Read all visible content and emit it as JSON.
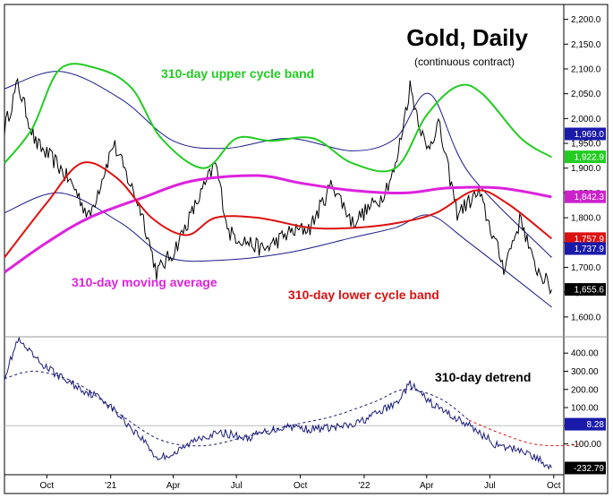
{
  "chart_data": {
    "type": "line",
    "title": "Gold, Daily",
    "subtitle": "(continuous contract)",
    "x_ticks": [
      "Oct",
      "'21",
      "Apr",
      "Jul",
      "Oct",
      "'22",
      "Apr",
      "Jul",
      "Oct"
    ],
    "x_range": [
      "2020-08-01",
      "2022-09-30"
    ],
    "upper_panel": {
      "ylim": [
        1560,
        2230
      ],
      "y_ticks": [
        "2,200.0",
        "2,150.0",
        "2,100.0",
        "2,050.0",
        "2,000.0",
        "1,950.0",
        "1,900.0",
        "1,850.0",
        "1,800.0",
        "1,750.0",
        "1,700.0",
        "1,650.0",
        "1,600.0"
      ],
      "annotations": {
        "upper_band": "310-day upper cycle band",
        "moving_average": "310-day moving average",
        "lower_band": "310-day lower cycle band"
      },
      "series": [
        {
          "key": "gold_price",
          "color": "#000000",
          "x": [
            "2020-08-01",
            "2020-08-20",
            "2020-09-15",
            "2020-10-15",
            "2020-11-10",
            "2020-12-01",
            "2021-01-05",
            "2021-02-15",
            "2021-03-08",
            "2021-04-01",
            "2021-05-15",
            "2021-06-01",
            "2021-06-20",
            "2021-08-09",
            "2021-09-15",
            "2021-10-15",
            "2021-11-16",
            "2021-12-15",
            "2022-01-25",
            "2022-02-15",
            "2022-03-08",
            "2022-04-01",
            "2022-04-18",
            "2022-05-15",
            "2022-06-15",
            "2022-07-21",
            "2022-08-15",
            "2022-09-01",
            "2022-09-28"
          ],
          "values": [
            1980,
            2070,
            1950,
            1910,
            1860,
            1800,
            1950,
            1810,
            1690,
            1730,
            1860,
            1910,
            1770,
            1735,
            1770,
            1780,
            1870,
            1790,
            1840,
            1900,
            2065,
            1935,
            1990,
            1810,
            1850,
            1700,
            1800,
            1710,
            1655
          ]
        },
        {
          "key": "upper_band",
          "color": "#22cc22",
          "x": [
            "2020-08-01",
            "2020-09-10",
            "2020-10-20",
            "2020-12-15",
            "2021-02-01",
            "2021-03-15",
            "2021-05-15",
            "2021-07-01",
            "2021-08-20",
            "2021-10-20",
            "2021-12-15",
            "2022-02-15",
            "2022-03-31",
            "2022-05-15",
            "2022-06-20",
            "2022-08-15",
            "2022-09-28"
          ],
          "values": [
            1910,
            1980,
            2100,
            2100,
            2060,
            1960,
            1900,
            1960,
            1955,
            1960,
            1910,
            1900,
            2005,
            2065,
            2050,
            1960,
            1922
          ]
        },
        {
          "key": "moving_average",
          "color": "#dd22dd",
          "x": [
            "2020-08-01",
            "2020-10-01",
            "2020-12-01",
            "2021-02-15",
            "2021-05-01",
            "2021-08-01",
            "2021-10-01",
            "2021-12-15",
            "2022-03-01",
            "2022-05-01",
            "2022-07-15",
            "2022-09-28"
          ],
          "values": [
            1690,
            1750,
            1800,
            1840,
            1875,
            1885,
            1870,
            1855,
            1850,
            1860,
            1860,
            1842
          ]
        },
        {
          "key": "lower_band",
          "color": "#dd1111",
          "x": [
            "2020-08-01",
            "2020-10-01",
            "2020-11-20",
            "2021-01-10",
            "2021-03-01",
            "2021-04-20",
            "2021-06-01",
            "2021-08-01",
            "2021-10-15",
            "2021-12-20",
            "2022-02-20",
            "2022-04-15",
            "2022-06-10",
            "2022-07-25",
            "2022-09-28"
          ],
          "values": [
            1720,
            1830,
            1910,
            1880,
            1800,
            1765,
            1800,
            1800,
            1780,
            1780,
            1790,
            1810,
            1855,
            1830,
            1758
          ]
        }
      ],
      "cycle_bands": [
        {
          "key": "outer_band_top",
          "x": [
            "2020-08-01",
            "2020-10-20",
            "2021-01-15",
            "2021-04-01",
            "2021-06-15",
            "2021-09-15",
            "2021-12-15",
            "2022-02-15",
            "2022-04-05",
            "2022-06-01",
            "2022-09-28"
          ],
          "values": [
            2060,
            2095,
            2040,
            1955,
            1940,
            1960,
            1935,
            1960,
            2050,
            1890,
            1720
          ]
        },
        {
          "key": "outer_band_bottom",
          "x": [
            "2020-08-01",
            "2020-10-20",
            "2021-01-15",
            "2021-03-25",
            "2021-06-15",
            "2021-09-15",
            "2021-12-15",
            "2022-02-15",
            "2022-04-05",
            "2022-06-01",
            "2022-09-28"
          ],
          "values": [
            1810,
            1850,
            1790,
            1720,
            1715,
            1730,
            1760,
            1780,
            1805,
            1750,
            1620
          ]
        }
      ],
      "price_badges": [
        {
          "label": "1,969.0",
          "value": 1969.0,
          "color": "#1a1aaa"
        },
        {
          "label": "1,922.9",
          "value": 1922.9,
          "color": "#22cc22"
        },
        {
          "label": "1,842.3",
          "value": 1842.3,
          "color": "#cc22cc"
        },
        {
          "label": "1,757.9",
          "value": 1757.9,
          "color": "#dd1111"
        },
        {
          "label": "1,737.9",
          "value": 1737.9,
          "color": "#1a1aaa"
        },
        {
          "label": "1,655.6",
          "value": 1655.6,
          "color": "#000000"
        }
      ]
    },
    "lower_panel": {
      "ylim": [
        -270,
        490
      ],
      "y_ticks": [
        "400.00",
        "300.00",
        "200.00",
        "100.00",
        "0.00",
        "-100.00"
      ],
      "annotation": "310-day detrend",
      "series": [
        {
          "key": "detrend",
          "color": "#1a1a7a",
          "x": [
            "2020-08-01",
            "2020-08-20",
            "2020-09-20",
            "2020-10-20",
            "2020-11-20",
            "2020-12-20",
            "2021-01-20",
            "2021-02-20",
            "2021-03-08",
            "2021-04-05",
            "2021-05-10",
            "2021-06-15",
            "2021-07-15",
            "2021-08-15",
            "2021-09-15",
            "2021-10-15",
            "2021-11-15",
            "2021-12-15",
            "2022-01-15",
            "2022-02-15",
            "2022-03-08",
            "2022-04-05",
            "2022-05-05",
            "2022-06-10",
            "2022-07-15",
            "2022-08-15",
            "2022-09-28"
          ],
          "values": [
            270,
            470,
            350,
            270,
            200,
            150,
            30,
            -90,
            -180,
            -150,
            -60,
            -40,
            -70,
            -30,
            0,
            -20,
            -10,
            0,
            60,
            120,
            230,
            130,
            60,
            -20,
            -120,
            -130,
            -232
          ]
        },
        {
          "key": "detrend_cycle",
          "color": "#1a1a7a",
          "dashed": true,
          "x": [
            "2020-08-01",
            "2020-09-15",
            "2020-11-15",
            "2021-01-15",
            "2021-03-15",
            "2021-05-15",
            "2021-07-15",
            "2021-09-15",
            "2021-11-15",
            "2022-01-15",
            "2022-03-01",
            "2022-04-20",
            "2022-06-01"
          ],
          "values": [
            260,
            300,
            230,
            60,
            -80,
            -110,
            -60,
            0,
            50,
            130,
            200,
            150,
            30
          ]
        },
        {
          "key": "detrend_projection",
          "color": "#dd1111",
          "dashed": true,
          "x": [
            "2022-06-01",
            "2022-07-15",
            "2022-09-01",
            "2022-10-15",
            "2022-11-10"
          ],
          "values": [
            30,
            -40,
            -100,
            -110,
            -100
          ]
        }
      ],
      "badges": [
        {
          "label": "8.28",
          "value": 8.28,
          "color": "#1a1aaa"
        },
        {
          "label": "-232.79",
          "value": -232.79,
          "color": "#000000"
        }
      ]
    }
  }
}
